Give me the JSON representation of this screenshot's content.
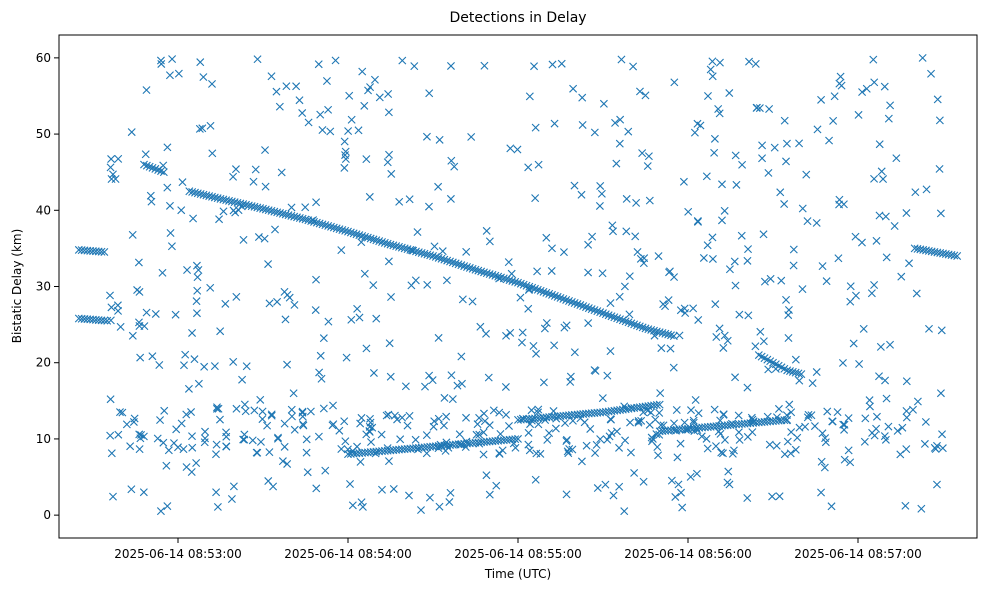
{
  "chart_data": {
    "type": "scatter",
    "title": "Detections in Delay",
    "xlabel": "Time (UTC)",
    "ylabel": "Bistatic Delay (km)",
    "x_unit": "UTC time",
    "xlim": [
      "2025-06-14 08:52:18",
      "2025-06-14 08:57:42"
    ],
    "ylim": [
      -3,
      63
    ],
    "x_ticks": [
      "2025-06-14 08:53:00",
      "2025-06-14 08:54:00",
      "2025-06-14 08:55:00",
      "2025-06-14 08:56:00",
      "2025-06-14 08:57:00"
    ],
    "y_ticks": [
      0,
      10,
      20,
      30,
      40,
      50,
      60
    ],
    "marker": "x",
    "grid": false,
    "legend": "none",
    "color": "#1f77b4",
    "series": [
      {
        "name": "",
        "tracks": [
          {
            "desc": "descending track",
            "points": [
              [
                "2025-06-14 08:53:04",
                42.5
              ],
              [
                "2025-06-14 08:53:15",
                41.5
              ],
              [
                "2025-06-14 08:53:30",
                40.2
              ],
              [
                "2025-06-14 08:53:45",
                38.8
              ],
              [
                "2025-06-14 08:54:00",
                37.2
              ],
              [
                "2025-06-14 08:54:15",
                35.5
              ],
              [
                "2025-06-14 08:54:30",
                34.0
              ],
              [
                "2025-06-14 08:54:45",
                32.2
              ],
              [
                "2025-06-14 08:55:00",
                30.5
              ],
              [
                "2025-06-14 08:55:15",
                28.5
              ],
              [
                "2025-06-14 08:55:30",
                26.5
              ],
              [
                "2025-06-14 08:55:45",
                24.5
              ],
              [
                "2025-06-14 08:55:55",
                23.5
              ]
            ]
          },
          {
            "desc": "short descending segment",
            "points": [
              [
                "2025-06-14 08:52:48",
                46.0
              ],
              [
                "2025-06-14 08:52:55",
                45.0
              ]
            ]
          },
          {
            "desc": "lower rising track",
            "points": [
              [
                "2025-06-14 08:54:00",
                8.0
              ],
              [
                "2025-06-14 08:54:15",
                8.5
              ],
              [
                "2025-06-14 08:54:30",
                9.0
              ],
              [
                "2025-06-14 08:54:45",
                9.5
              ],
              [
                "2025-06-14 08:55:00",
                10.0
              ]
            ]
          },
          {
            "desc": "mid rising track",
            "points": [
              [
                "2025-06-14 08:55:00",
                12.5
              ],
              [
                "2025-06-14 08:55:30",
                13.5
              ],
              [
                "2025-06-14 08:55:50",
                14.5
              ]
            ]
          },
          {
            "desc": "flat track",
            "points": [
              [
                "2025-06-14 08:55:50",
                11.0
              ],
              [
                "2025-06-14 08:56:05",
                11.5
              ],
              [
                "2025-06-14 08:56:20",
                12.0
              ],
              [
                "2025-06-14 08:56:35",
                12.5
              ]
            ]
          },
          {
            "desc": "curved track",
            "points": [
              [
                "2025-06-14 08:56:25",
                21.0
              ],
              [
                "2025-06-14 08:56:35",
                19.0
              ],
              [
                "2025-06-14 08:56:40",
                18.5
              ]
            ]
          },
          {
            "desc": "left clusters",
            "points": [
              [
                "2025-06-14 08:52:25",
                34.8
              ],
              [
                "2025-06-14 08:52:35",
                34.5
              ],
              [
                "2025-06-14 08:52:25",
                25.8
              ],
              [
                "2025-06-14 08:52:35",
                25.5
              ]
            ]
          },
          {
            "desc": "right cluster",
            "points": [
              [
                "2025-06-14 08:57:20",
                35.0
              ],
              [
                "2025-06-14 08:57:35",
                34.0
              ]
            ]
          }
        ],
        "scatter_note": "plus a dense field of scattered detections across 0-60 km"
      }
    ]
  }
}
